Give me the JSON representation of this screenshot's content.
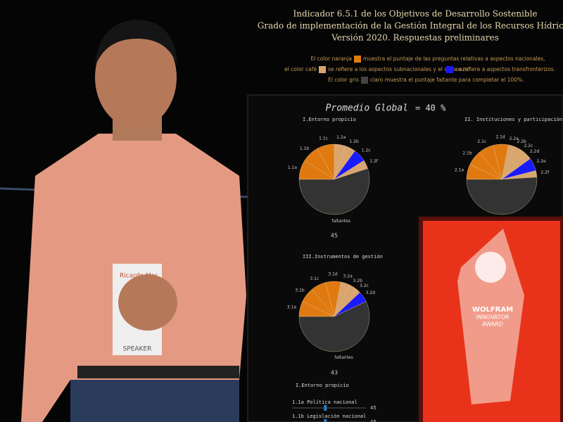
{
  "header": {
    "lines": [
      "Indicador 6.5.1 de los Objetivos de Desarrollo Sostenible",
      "Grado de implementación de la Gestión Integral de los Recursos Hídricos",
      "Versión 2020.  Respuestas preliminares"
    ]
  },
  "legend": {
    "line1": [
      "El color naranja",
      "muestra el puntaje de las preguntas relativas a aspectos nacionales,"
    ],
    "line2": [
      "el color café",
      "se refiere a los aspectos subnacionales y el color azul",
      "se refiere a aspectos transfronterizos."
    ],
    "line3": [
      "El color gris",
      "claro muestra el puntaje faltante para completar el 100%."
    ]
  },
  "global": {
    "label": "Promedio Global",
    "value_label": "= 40 %"
  },
  "pies": [
    {
      "title": "I.Entorno propicio",
      "score": 45,
      "slices": [
        {
          "label": "1.1a",
          "value": 9,
          "color": "#e07a10"
        },
        {
          "label": "1.1b",
          "value": 8,
          "color": "#e07a10"
        },
        {
          "label": "1.1c",
          "value": 8,
          "color": "#e07a10"
        },
        {
          "label": "1.2a",
          "value": 5,
          "color": "#d9a56e"
        },
        {
          "label": "1.2b",
          "value": 5,
          "color": "#d9a56e"
        },
        {
          "label": "1.2c",
          "value": 6,
          "color": "#1a1aff"
        },
        {
          "label": "1.2f",
          "value": 4,
          "color": "#d9a56e"
        },
        {
          "label": "faltantes",
          "value": 55,
          "color": "#333333"
        }
      ]
    },
    {
      "title": "II. Instituciones y participación",
      "slices": [
        {
          "label": "2.1a",
          "value": 7,
          "color": "#e07a10"
        },
        {
          "label": "2.1b",
          "value": 7,
          "color": "#e07a10"
        },
        {
          "label": "2.1c",
          "value": 7,
          "color": "#e07a10"
        },
        {
          "label": "2.1d",
          "value": 7,
          "color": "#e07a10"
        },
        {
          "label": "2.2a",
          "value": 3,
          "color": "#d9a56e"
        },
        {
          "label": "2.2b",
          "value": 3,
          "color": "#d9a56e"
        },
        {
          "label": "2.2c",
          "value": 3,
          "color": "#d9a56e"
        },
        {
          "label": "2.2d",
          "value": 3,
          "color": "#d9a56e"
        },
        {
          "label": "2.2e",
          "value": 6,
          "color": "#1a1aff"
        },
        {
          "label": "2.2f",
          "value": 3,
          "color": "#d9a56e"
        },
        {
          "label": "faltantes",
          "value": 51,
          "color": "#333333"
        }
      ]
    },
    {
      "title": "III.Instrumentos de gestión",
      "score": 43,
      "slices": [
        {
          "label": "3.1a",
          "value": 7,
          "color": "#e07a10"
        },
        {
          "label": "3.1b",
          "value": 7,
          "color": "#e07a10"
        },
        {
          "label": "3.1c",
          "value": 7,
          "color": "#e07a10"
        },
        {
          "label": "3.1d",
          "value": 7,
          "color": "#e07a10"
        },
        {
          "label": "3.2a",
          "value": 4,
          "color": "#d9a56e"
        },
        {
          "label": "3.2b",
          "value": 4,
          "color": "#d9a56e"
        },
        {
          "label": "3.2c",
          "value": 2,
          "color": "#d9a56e"
        },
        {
          "label": "3.2d",
          "value": 5,
          "color": "#1a1aff"
        },
        {
          "label": "faltantes",
          "value": 57,
          "color": "#333333"
        }
      ]
    }
  ],
  "detail": {
    "title": "I.Entorno propicio",
    "rows": [
      {
        "label": "1.1a Política nacional",
        "value": 45
      },
      {
        "label": "1.1b Legislación nacional",
        "value": 45
      }
    ]
  },
  "badge": {
    "name": "Ricardo Mar",
    "role": "SPEAKER"
  },
  "award": {
    "lines": [
      "WOLFRAM",
      "INNOVATOR",
      "AWARD"
    ]
  }
}
